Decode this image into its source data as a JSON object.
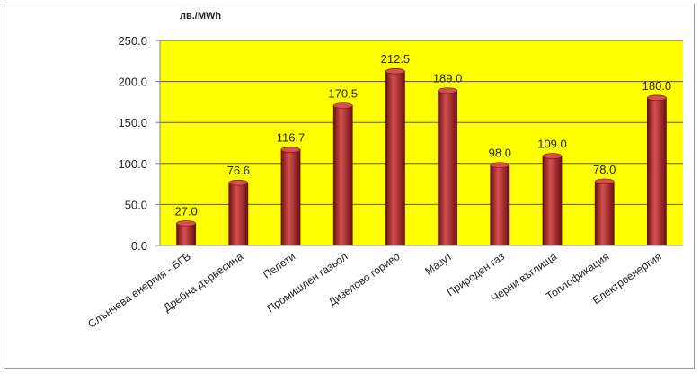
{
  "chart_data": {
    "type": "bar",
    "ylabel": "лв./MWh",
    "categories": [
      "Слънчева енергия - БГВ",
      "Дребна дървесина",
      "Пелети",
      "Промишлен газьол",
      "Дизелово гориво",
      "Мазут",
      "Природен газ",
      "Черни въглища",
      "Топлофикация",
      "Електроенергия"
    ],
    "values": [
      27.0,
      76.6,
      116.7,
      170.5,
      212.5,
      189.0,
      98.0,
      109.0,
      78.0,
      180.0
    ],
    "value_labels": [
      "27.0",
      "76.6",
      "116.7",
      "170.5",
      "212.5",
      "189.0",
      "98.0",
      "109.0",
      "78.0",
      "180.0"
    ],
    "ylim": [
      0,
      250
    ],
    "yticks": [
      "0.0",
      "50.0",
      "100.0",
      "150.0",
      "200.0",
      "250.0"
    ],
    "ytick_values": [
      0,
      50,
      100,
      150,
      200,
      250
    ],
    "grid": true,
    "legend": "none",
    "colors": {
      "plot_background": "#ffff00",
      "bar_fill": "#a82424",
      "bar_highlight": "#d65050",
      "bar_shadow": "#6b1010",
      "gridline": "#555555",
      "axis": "#808080"
    }
  }
}
